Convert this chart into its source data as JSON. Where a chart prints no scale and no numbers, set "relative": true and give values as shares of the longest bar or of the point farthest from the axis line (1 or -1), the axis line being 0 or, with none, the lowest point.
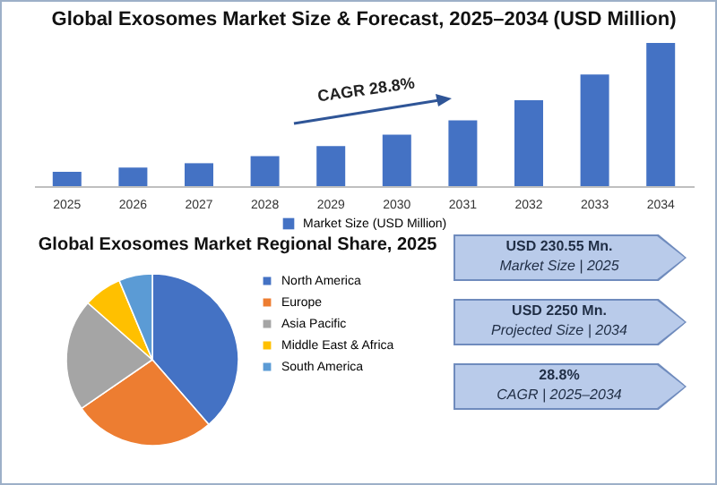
{
  "chart_data": [
    {
      "type": "bar",
      "title": "Global Exosomes Market Size & Forecast, 2025–2034 (USD Million)",
      "categories": [
        "2025",
        "2026",
        "2027",
        "2028",
        "2029",
        "2030",
        "2031",
        "2032",
        "2033",
        "2034"
      ],
      "series": [
        {
          "name": "Market Size (USD Million)",
          "color": "#4472c4",
          "values": [
            0.1,
            0.13,
            0.16,
            0.21,
            0.28,
            0.36,
            0.46,
            0.6,
            0.78,
            1
          ]
        }
      ],
      "relative": true,
      "legend": "bottom",
      "grid": false,
      "annotations": [
        "CAGR 28.8%"
      ]
    },
    {
      "type": "pie",
      "title": "Global Exosomes Market Regional Share, 2025",
      "categories": [
        "North America",
        "Europe",
        "Asia Pacific",
        "Middle East & Africa",
        "South America"
      ],
      "values": [
        38.6,
        26.8,
        21.1,
        7.2,
        6.3
      ],
      "colors": [
        "#4472c4",
        "#ed7d31",
        "#a5a5a5",
        "#ffc000",
        "#5b9bd5"
      ],
      "legend": "right"
    },
    {
      "type": "other",
      "annotations": [
        "USD 230.55 Mn.",
        "Market Size | 2025",
        "USD 2250 Mn.",
        "Projected Size | 2034",
        "28.8%",
        "CAGR | 2025–2034"
      ]
    }
  ]
}
